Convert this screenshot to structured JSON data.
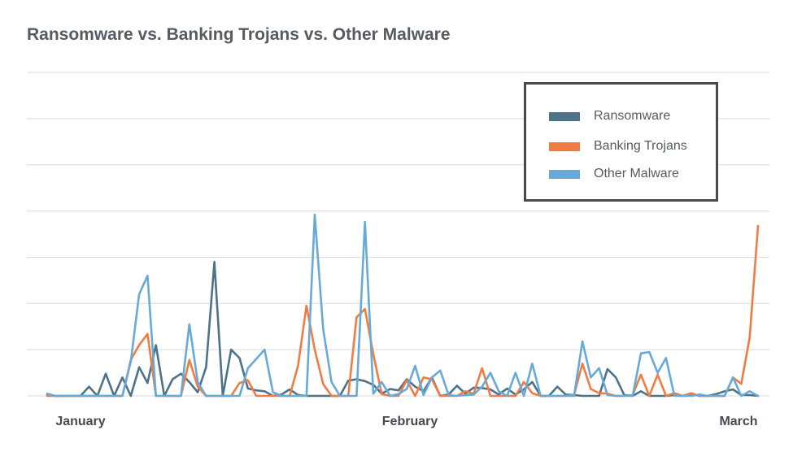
{
  "chart_data": {
    "type": "line",
    "title": "Ransomware vs. Banking Trojans vs. Other Malware",
    "xlabel": "",
    "ylabel": "",
    "x_tick_labels": [
      "January",
      "February",
      "March"
    ],
    "ylim": [
      0,
      7
    ],
    "grid": true,
    "legend_position": "top-right",
    "series": [
      {
        "name": "Ransomware",
        "color": "#4e7388",
        "values": [
          0.02,
          0,
          0,
          0,
          0,
          0.2,
          0,
          0.48,
          0,
          0.4,
          0,
          0.62,
          0.28,
          1.1,
          0,
          0.36,
          0.48,
          0.3,
          0.08,
          0.62,
          2.9,
          0,
          1.0,
          0.82,
          0.16,
          0.12,
          0.1,
          0,
          0.03,
          0.14,
          0.02,
          0,
          0,
          0,
          0,
          0,
          0.33,
          0.36,
          0.32,
          0.24,
          0.05,
          0.15,
          0.12,
          0.36,
          0.2,
          0.1,
          0.4,
          0,
          0.03,
          0.22,
          0.05,
          0.18,
          0.17,
          0.14,
          0.03,
          0.16,
          0.03,
          0.14,
          0.3,
          0,
          0,
          0.2,
          0.03,
          0.02,
          0,
          0,
          0,
          0.58,
          0.4,
          0.02,
          0,
          0.1,
          0,
          0,
          0,
          0.02,
          0,
          0.05,
          0,
          0,
          0.04,
          0.1,
          0.14,
          0.02,
          0.02,
          0
        ]
      },
      {
        "name": "Banking Trojans",
        "color": "#f07c41",
        "values": [
          0,
          0,
          0,
          0,
          0,
          0,
          0,
          0,
          0,
          0,
          0.78,
          1.1,
          1.34,
          0,
          0,
          0,
          0,
          0.78,
          0.2,
          0,
          0,
          0,
          0,
          0.28,
          0.34,
          0,
          0,
          0,
          0,
          0,
          0.66,
          1.95,
          1.0,
          0.26,
          0,
          0,
          0,
          1.7,
          1.88,
          0.9,
          0.04,
          0,
          0,
          0.34,
          0,
          0.4,
          0.36,
          0,
          0,
          0,
          0.1,
          0.05,
          0.6,
          0,
          0,
          0,
          0,
          0.3,
          0.06,
          0,
          0,
          0,
          0,
          0.02,
          0.7,
          0.15,
          0.06,
          0.05,
          0,
          0,
          0.02,
          0.46,
          0,
          0.46,
          0,
          0.06,
          0,
          0.06,
          0,
          0,
          0,
          0,
          0.4,
          0.26,
          1.26,
          3.68
        ]
      },
      {
        "name": "Other Malware",
        "color": "#67aad9",
        "values": [
          0.05,
          0,
          0,
          0,
          0,
          0,
          0,
          0,
          0,
          0,
          0.74,
          2.2,
          2.6,
          0,
          0,
          0,
          0,
          1.55,
          0.3,
          0,
          0,
          0,
          0,
          0,
          0.6,
          0.8,
          1.0,
          0.08,
          0,
          0,
          0,
          0,
          3.92,
          1.45,
          0.3,
          0,
          0,
          0,
          3.76,
          0.05,
          0.3,
          0,
          0.04,
          0.15,
          0.65,
          0.02,
          0.4,
          0.55,
          0.02,
          0,
          0.02,
          0.03,
          0.2,
          0.5,
          0.1,
          0,
          0.5,
          0,
          0.7,
          0,
          0,
          0,
          0,
          0,
          1.18,
          0.4,
          0.6,
          0.02,
          0,
          0,
          0,
          0.92,
          0.95,
          0.5,
          0.82,
          0,
          0,
          0,
          0.03,
          0,
          0,
          0,
          0.4,
          0,
          0.1,
          0
        ]
      }
    ]
  }
}
